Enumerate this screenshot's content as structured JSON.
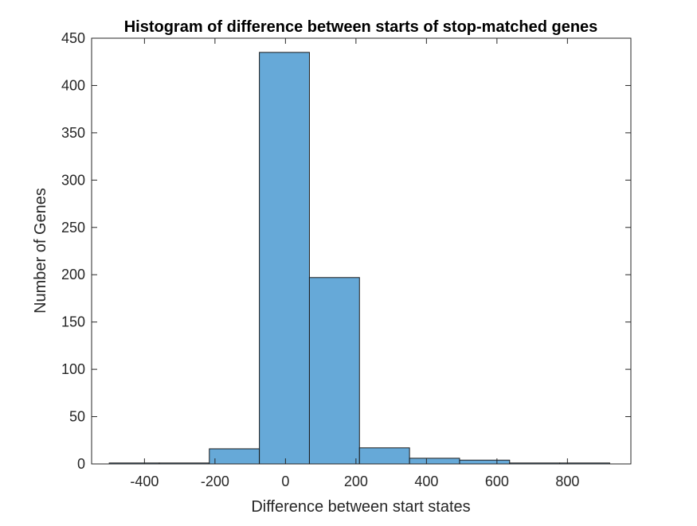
{
  "colors": {
    "bar_fill": "#66a9d8",
    "bar_edge": "#1a1a1a",
    "axis": "#262626",
    "background": "#ffffff"
  },
  "chart_data": {
    "type": "bar",
    "title": "Histogram of difference between starts of stop-matched genes",
    "xlabel": "Difference between start states",
    "ylabel": "Number of Genes",
    "xlim": [
      -550,
      980
    ],
    "ylim": [
      0,
      450
    ],
    "grid": false,
    "legend": "none",
    "x_ticks": [
      -400,
      -200,
      0,
      200,
      400,
      600,
      800
    ],
    "x_tick_labels": [
      "-400",
      "-200",
      "0",
      "200",
      "400",
      "600",
      "800"
    ],
    "y_ticks": [
      0,
      50,
      100,
      150,
      200,
      250,
      300,
      350,
      400,
      450
    ],
    "y_tick_labels": [
      "0",
      "50",
      "100",
      "150",
      "200",
      "250",
      "300",
      "350",
      "400",
      "450"
    ],
    "bin_edges": [
      -500,
      -358,
      -216,
      -74,
      68,
      210,
      352,
      494,
      636,
      778,
      920
    ],
    "counts": [
      1,
      1,
      16,
      435,
      197,
      17,
      6,
      4,
      1,
      1
    ]
  }
}
